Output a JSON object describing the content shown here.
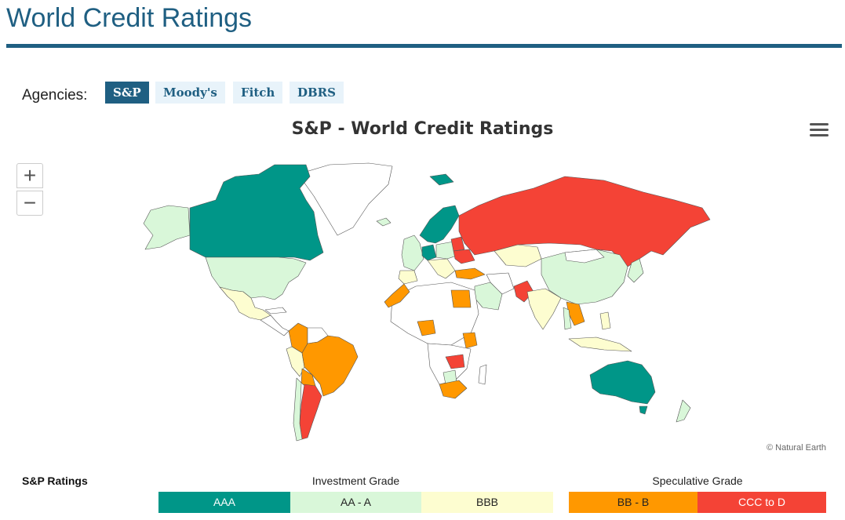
{
  "page": {
    "title": "World Credit Ratings"
  },
  "agencies": {
    "label": "Agencies:",
    "items": [
      {
        "label": "S&P",
        "active": true
      },
      {
        "label": "Moody's",
        "active": false
      },
      {
        "label": "Fitch",
        "active": false
      },
      {
        "label": "DBRS",
        "active": false
      }
    ]
  },
  "chart": {
    "title": "S&P - World Credit Ratings",
    "credit": "© Natural Earth",
    "zoom_in": "+",
    "zoom_out": "−"
  },
  "legend": {
    "title": "S&P Ratings",
    "investment_label": "Investment Grade",
    "speculative_label": "Speculative Grade",
    "categories": [
      {
        "label": "AAA",
        "color": "#009688"
      },
      {
        "label": "AA - A",
        "color": "#d9f7d9"
      },
      {
        "label": "BBB",
        "color": "#fdfdd0"
      },
      {
        "label": "BB - B",
        "color": "#ff9800"
      },
      {
        "label": "CCC to D",
        "color": "#f44336"
      }
    ]
  },
  "colors": {
    "brand": "#1f5f82",
    "unrated": "#ffffff",
    "border": "#555555"
  }
}
